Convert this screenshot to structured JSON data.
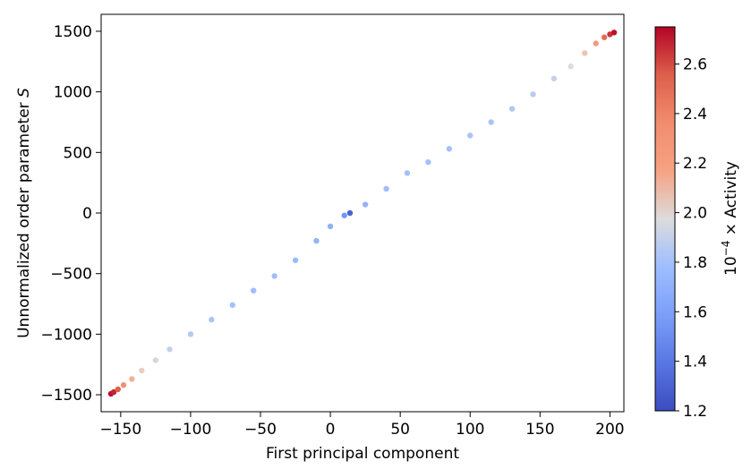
{
  "chart_data": {
    "type": "scatter",
    "xlabel": "First principal component",
    "ylabel": "Unnormalized order parameter ",
    "ylabel_symbol": "S",
    "xlim": [
      -164,
      210
    ],
    "ylim": [
      -1640,
      1640
    ],
    "xticks": [
      -150,
      -100,
      -50,
      0,
      50,
      100,
      150,
      200
    ],
    "yticks": [
      -1500,
      -1000,
      -500,
      0,
      500,
      1000,
      1500
    ],
    "xtick_labels": [
      "−150",
      "−100",
      "−50",
      "0",
      "50",
      "100",
      "150",
      "200"
    ],
    "ytick_labels": [
      "−1500",
      "−1000",
      "−500",
      "0",
      "500",
      "1000",
      "1500"
    ],
    "trend": {
      "slope": 8.1,
      "intercept": -195
    },
    "colorbar": {
      "label_prefix": "10",
      "label_exponent": "−4",
      "label_suffix": " × Activity",
      "range": [
        1.2,
        2.75
      ],
      "ticks": [
        1.2,
        1.4,
        1.6,
        1.8,
        2.0,
        2.2,
        2.4,
        2.6
      ],
      "tick_labels": [
        "1.2",
        "1.4",
        "1.6",
        "1.8",
        "2.0",
        "2.2",
        "2.4",
        "2.6"
      ],
      "colormap": "coolwarm"
    },
    "points": [
      {
        "x": -157,
        "y": -1492,
        "activity": 2.72
      },
      {
        "x": -155,
        "y": -1478,
        "activity": 2.68
      },
      {
        "x": -152,
        "y": -1455,
        "activity": 2.55
      },
      {
        "x": -148,
        "y": -1420,
        "activity": 2.35
      },
      {
        "x": -142,
        "y": -1370,
        "activity": 2.2
      },
      {
        "x": -135,
        "y": -1300,
        "activity": 2.05
      },
      {
        "x": -125,
        "y": -1215,
        "activity": 1.95
      },
      {
        "x": -115,
        "y": -1125,
        "activity": 1.9
      },
      {
        "x": -100,
        "y": -1000,
        "activity": 1.85
      },
      {
        "x": -85,
        "y": -880,
        "activity": 1.82
      },
      {
        "x": -70,
        "y": -760,
        "activity": 1.8
      },
      {
        "x": -55,
        "y": -640,
        "activity": 1.78
      },
      {
        "x": -40,
        "y": -520,
        "activity": 1.78
      },
      {
        "x": -25,
        "y": -390,
        "activity": 1.76
      },
      {
        "x": -10,
        "y": -230,
        "activity": 1.72
      },
      {
        "x": 0,
        "y": -110,
        "activity": 1.7
      },
      {
        "x": 10,
        "y": -20,
        "activity": 1.55
      },
      {
        "x": 14,
        "y": 0,
        "activity": 1.3
      },
      {
        "x": 25,
        "y": 70,
        "activity": 1.72
      },
      {
        "x": 40,
        "y": 200,
        "activity": 1.78
      },
      {
        "x": 55,
        "y": 330,
        "activity": 1.8
      },
      {
        "x": 70,
        "y": 420,
        "activity": 1.8
      },
      {
        "x": 85,
        "y": 530,
        "activity": 1.8
      },
      {
        "x": 100,
        "y": 640,
        "activity": 1.82
      },
      {
        "x": 115,
        "y": 750,
        "activity": 1.82
      },
      {
        "x": 130,
        "y": 860,
        "activity": 1.84
      },
      {
        "x": 145,
        "y": 980,
        "activity": 1.86
      },
      {
        "x": 160,
        "y": 1110,
        "activity": 1.9
      },
      {
        "x": 172,
        "y": 1210,
        "activity": 1.98
      },
      {
        "x": 182,
        "y": 1320,
        "activity": 2.1
      },
      {
        "x": 190,
        "y": 1400,
        "activity": 2.3
      },
      {
        "x": 196,
        "y": 1450,
        "activity": 2.5
      },
      {
        "x": 200,
        "y": 1475,
        "activity": 2.65
      },
      {
        "x": 203,
        "y": 1490,
        "activity": 2.72
      }
    ]
  }
}
